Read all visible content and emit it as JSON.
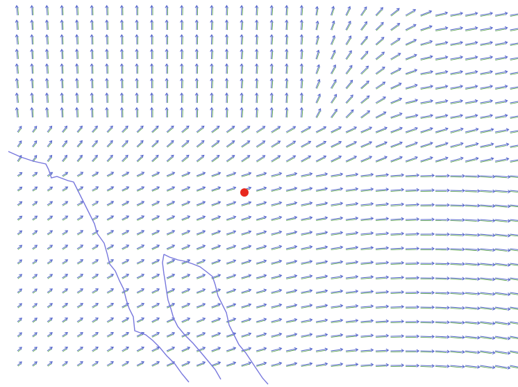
{
  "map": {
    "colors": {
      "background": "#ffffff",
      "vector_primary": "#5566cc",
      "vector_secondary": "#4a9a3c",
      "coastline": "#7777dd",
      "marker": "#e8281e"
    },
    "layers": [
      "wind-vector-field",
      "coastline",
      "location-marker"
    ],
    "marker": {
      "icon": "red-dot-icon"
    }
  }
}
